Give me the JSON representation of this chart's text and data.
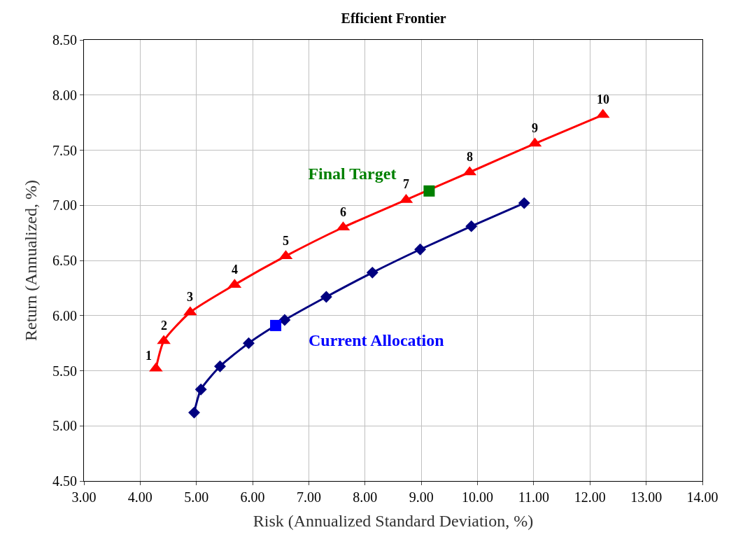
{
  "chart_data": {
    "type": "line",
    "title": "Efficient Frontier",
    "xlabel": "Risk (Annualized Standard Deviation, %)",
    "ylabel": "Return (Annualized, %)",
    "xlim": [
      3,
      14
    ],
    "ylim": [
      4.5,
      8.5
    ],
    "xticks": [
      {
        "value": 3,
        "label": "3.00"
      },
      {
        "value": 4,
        "label": "4.00"
      },
      {
        "value": 5,
        "label": "5.00"
      },
      {
        "value": 6,
        "label": "6.00"
      },
      {
        "value": 7,
        "label": "7.00"
      },
      {
        "value": 8,
        "label": "8.00"
      },
      {
        "value": 9,
        "label": "9.00"
      },
      {
        "value": 10,
        "label": "10.00"
      },
      {
        "value": 11,
        "label": "11.00"
      },
      {
        "value": 12,
        "label": "12.00"
      },
      {
        "value": 13,
        "label": "13.00"
      },
      {
        "value": 14,
        "label": "14.00"
      }
    ],
    "yticks": [
      {
        "value": 4.5,
        "label": "4.50"
      },
      {
        "value": 5,
        "label": "5.00"
      },
      {
        "value": 5.5,
        "label": "5.50"
      },
      {
        "value": 6,
        "label": "6.00"
      },
      {
        "value": 6.5,
        "label": "6.50"
      },
      {
        "value": 7,
        "label": "7.00"
      },
      {
        "value": 7.5,
        "label": "7.50"
      },
      {
        "value": 8,
        "label": "8.00"
      },
      {
        "value": 8.5,
        "label": "8.50"
      }
    ],
    "grid": true,
    "legend": false,
    "series": [
      {
        "color": "#ff0000",
        "marker": "triangle",
        "x": [
          4.28,
          4.42,
          4.89,
          5.68,
          6.59,
          7.61,
          8.73,
          9.86,
          11.02,
          12.23
        ],
        "values": [
          5.52,
          5.77,
          6.03,
          6.28,
          6.54,
          6.8,
          7.05,
          7.3,
          7.56,
          7.82
        ]
      },
      {
        "color": "#000080",
        "marker": "diamond",
        "x": [
          4.96,
          5.08,
          5.42,
          5.93,
          6.57,
          7.31,
          8.13,
          8.98,
          9.89,
          10.83
        ],
        "values": [
          5.12,
          5.33,
          5.54,
          5.75,
          5.96,
          6.17,
          6.39,
          6.6,
          6.81,
          7.02
        ]
      },
      {
        "type": "scatter",
        "name": "Final Target",
        "color": "#008000",
        "marker": "square",
        "x": [
          9.14
        ],
        "values": [
          7.13
        ]
      },
      {
        "type": "scatter",
        "name": "Current Allocation",
        "color": "#0000ff",
        "marker": "square",
        "x": [
          6.41
        ],
        "values": [
          5.91
        ]
      }
    ],
    "annotations": [
      {
        "text": "1",
        "x": 4.28,
        "y": 5.52
      },
      {
        "text": "2",
        "x": 4.42,
        "y": 5.77
      },
      {
        "text": "3",
        "x": 4.89,
        "y": 6.03
      },
      {
        "text": "4",
        "x": 5.68,
        "y": 6.28
      },
      {
        "text": "5",
        "x": 6.59,
        "y": 6.54
      },
      {
        "text": "6",
        "x": 7.61,
        "y": 6.8
      },
      {
        "text": "7",
        "x": 8.73,
        "y": 7.05
      },
      {
        "text": "8",
        "x": 9.86,
        "y": 7.3
      },
      {
        "text": "9",
        "x": 11.02,
        "y": 7.56
      },
      {
        "text": "10",
        "x": 12.23,
        "y": 7.82
      }
    ]
  }
}
